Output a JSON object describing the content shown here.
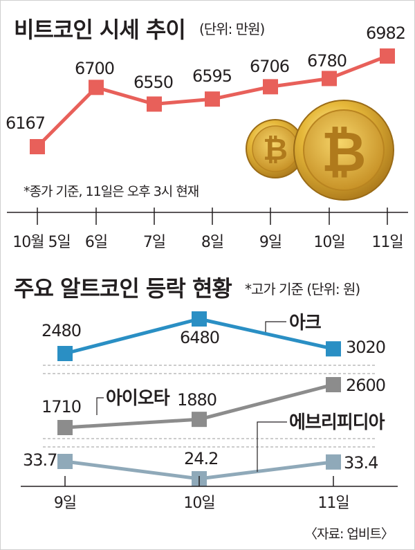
{
  "chart_data": [
    {
      "type": "line",
      "title": "비트코인 시세 추이",
      "unit": "(단위: 만원)",
      "note": "*종가 기준, 11일은 오후 3시 현재",
      "categories": [
        "10월 5일",
        "6일",
        "7일",
        "8일",
        "9일",
        "10일",
        "11일"
      ],
      "series": [
        {
          "values": [
            6167,
            6700,
            6550,
            6595,
            6706,
            6780,
            6982
          ]
        }
      ],
      "ylim": [
        5700,
        7050
      ],
      "colors": {
        "line": "#e8605a",
        "marker": "#e8605a"
      },
      "icons": [
        "bitcoin-coin-icon",
        "bitcoin-coin-icon"
      ],
      "grid": false
    },
    {
      "type": "line",
      "title": "주요 알트코인 등락 현황",
      "unit": "*고가 기준 (단위: 원)",
      "categories": [
        "9일",
        "10일",
        "11일"
      ],
      "series": [
        {
          "name": "아크",
          "values": [
            2480,
            6480,
            3020
          ],
          "labels": [
            "2480",
            "6480",
            "3020"
          ],
          "color": "#2a8fc4"
        },
        {
          "name": "아이오타",
          "values": [
            1710,
            1880,
            2600
          ],
          "labels": [
            "1710",
            "1880",
            "2600"
          ],
          "color": "#8c8c8c"
        },
        {
          "name": "에브리피디아",
          "values": [
            33.7,
            24.2,
            33.4
          ],
          "labels": [
            "33.7",
            "24.2",
            "33.4"
          ],
          "color": "#8fa9b9"
        }
      ],
      "grid": false
    }
  ],
  "source": "〈자료: 업비트〉"
}
